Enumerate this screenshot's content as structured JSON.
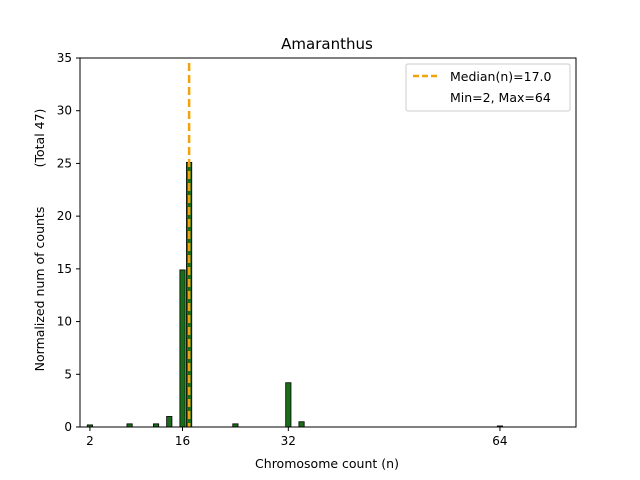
{
  "chart_data": {
    "type": "bar",
    "title": "Amaranthus",
    "xlabel": "Chromosome count (n)",
    "ylabel_line1": "Normalized num of counts",
    "ylabel_line2": "(Total 47)",
    "xlim": [
      0.5,
      75.5
    ],
    "ylim": [
      0,
      35
    ],
    "x_ticks": [
      2,
      16,
      32,
      64
    ],
    "y_ticks": [
      0,
      5,
      10,
      15,
      20,
      25,
      30,
      35
    ],
    "bar_width": 0.8,
    "bar_color": "#1a6b1a",
    "bar_edge_color": "#000000",
    "bars": [
      {
        "x": 2,
        "value": 0.2
      },
      {
        "x": 8,
        "value": 0.3
      },
      {
        "x": 12,
        "value": 0.3
      },
      {
        "x": 14,
        "value": 1.0
      },
      {
        "x": 16,
        "value": 14.9
      },
      {
        "x": 17,
        "value": 25.1
      },
      {
        "x": 24,
        "value": 0.3
      },
      {
        "x": 32,
        "value": 4.2
      },
      {
        "x": 34,
        "value": 0.5
      },
      {
        "x": 64,
        "value": 0.1
      }
    ],
    "median_line": {
      "x": 17.0,
      "color": "#f0a30a",
      "label": "Median(n)=17.0"
    },
    "legend_extra": "Min=2, Max=64",
    "legend_position": "top-right"
  }
}
